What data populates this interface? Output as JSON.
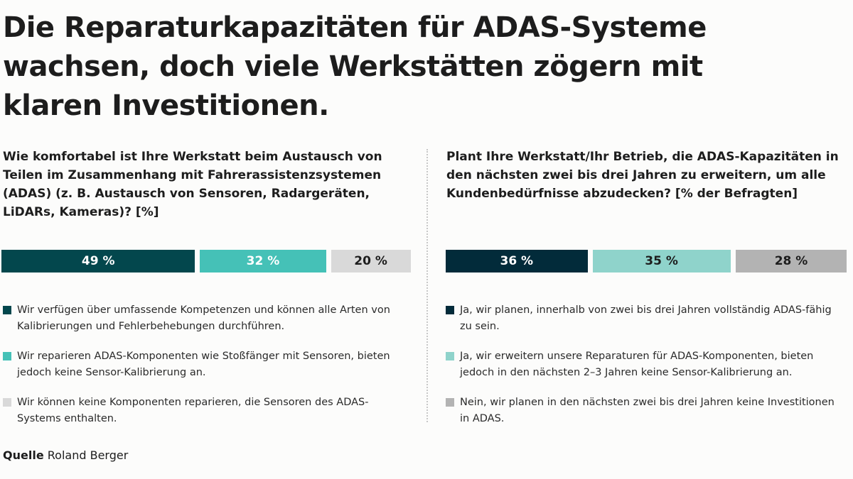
{
  "title": "Die Reparaturkapazitäten für ADAS-Systeme wachsen, doch viele Werkstätten zögern mit klaren Investitionen.",
  "source": {
    "label": "Quelle",
    "name": "Roland Berger"
  },
  "chart_data": [
    {
      "type": "bar",
      "orientation": "horizontal-stacked",
      "title": "Wie komfortabel ist Ihre Werkstatt beim Austausch von Teilen im Zusammenhang mit Fahrerassistenzsystemen (ADAS) (z. B. Austausch von Sensoren, Radargeräten, LiDARs, Kameras)? [%]",
      "unit": "%",
      "series": [
        {
          "name": "Wir verfügen über umfassende Kompetenzen und können alle Arten von Kalibrierungen und Fehlerbehebungen durchführen.",
          "value": 49,
          "label": "49 %",
          "color": "#03474d",
          "text_color": "#ffffff"
        },
        {
          "name": "Wir reparieren ADAS-Komponenten wie Stoßfänger mit Sensoren, bieten jedoch keine Sensor-Kalibrierung an.",
          "value": 32,
          "label": "32 %",
          "color": "#45c1b7",
          "text_color": "#ffffff"
        },
        {
          "name": "Wir können keine Komponenten reparieren, die Sensoren des ADAS-Systems enthalten.",
          "value": 20,
          "label": "20 %",
          "color": "#d9d9d9",
          "text_color": "#1d1d1d"
        }
      ]
    },
    {
      "type": "bar",
      "orientation": "horizontal-stacked",
      "title": "Plant Ihre Werkstatt/Ihr Betrieb, die ADAS-Kapazitäten in den nächsten zwei bis drei Jahren zu erweitern, um alle Kundenbedürfnisse abzudecken? [% der Befragten]",
      "unit": "%",
      "series": [
        {
          "name": "Ja, wir planen, innerhalb von zwei bis drei Jahren vollständig ADAS-fähig zu sein.",
          "value": 36,
          "label": "36 %",
          "color": "#022b3a",
          "text_color": "#ffffff"
        },
        {
          "name": "Ja, wir erweitern unsere Reparaturen für ADAS-Komponenten, bieten jedoch in den nächsten 2–3 Jahren keine Sensor-Kalibrierung an.",
          "value": 35,
          "label": "35 %",
          "color": "#8fd3cb",
          "text_color": "#1d1d1d"
        },
        {
          "name": "Nein, wir planen in den nächsten zwei bis drei Jahren keine Investitionen in ADAS.",
          "value": 28,
          "label": "28 %",
          "color": "#b3b3b3",
          "text_color": "#1d1d1d"
        }
      ]
    }
  ]
}
